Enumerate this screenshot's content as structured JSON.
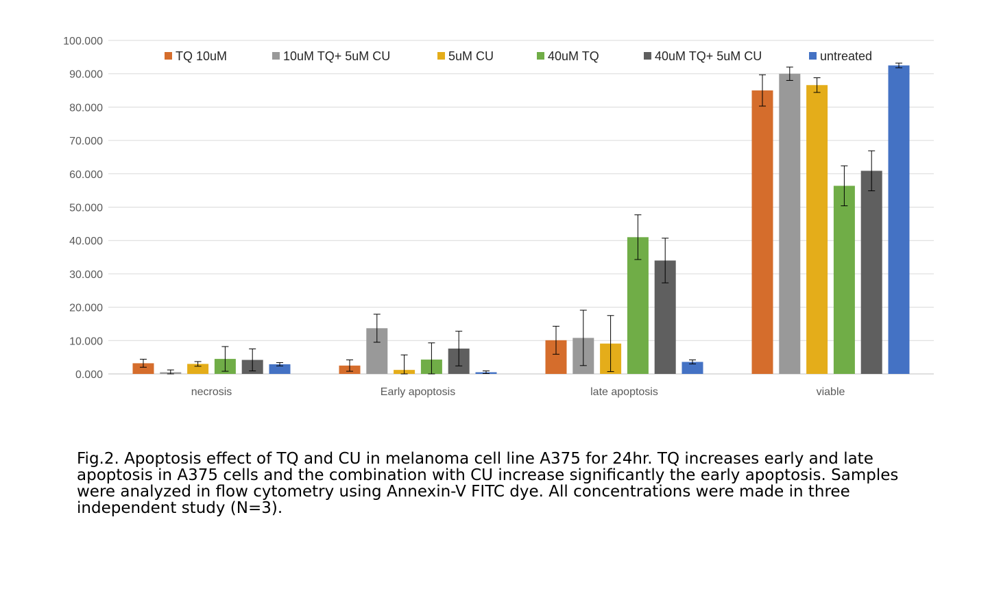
{
  "chart_data": {
    "type": "bar",
    "title": "",
    "xlabel": "",
    "ylabel": "",
    "ylim": [
      0,
      100
    ],
    "yticks": [
      "0.000",
      "10.000",
      "20.000",
      "30.000",
      "40.000",
      "50.000",
      "60.000",
      "70.000",
      "80.000",
      "90.000",
      "100.000"
    ],
    "grid": true,
    "legend_position": "top",
    "categories": [
      "necrosis",
      "Early apoptosis",
      "late apoptosis",
      "viable"
    ],
    "series": [
      {
        "name": "TQ 10uM",
        "color": "#d56d2c",
        "values": [
          3.2,
          2.5,
          10.1,
          85.0
        ],
        "errors": [
          1.2,
          1.7,
          4.2,
          4.7
        ]
      },
      {
        "name": "10uM TQ+ 5uM CU",
        "color": "#999999",
        "values": [
          0.5,
          13.7,
          10.8,
          90.0
        ],
        "errors": [
          0.7,
          4.2,
          8.3,
          2.0
        ]
      },
      {
        "name": "5uM CU",
        "color": "#e4ad1a",
        "values": [
          3.0,
          1.2,
          9.1,
          86.6
        ],
        "errors": [
          0.7,
          4.5,
          8.4,
          2.2
        ]
      },
      {
        "name": "40uM TQ",
        "color": "#70ad47",
        "values": [
          4.5,
          4.3,
          41.0,
          56.4
        ],
        "errors": [
          3.7,
          5.0,
          6.7,
          6.0
        ]
      },
      {
        "name": "40uM TQ+ 5uM CU",
        "color": "#5f5f5f",
        "values": [
          4.2,
          7.6,
          34.0,
          60.9
        ],
        "errors": [
          3.3,
          5.2,
          6.7,
          6.0
        ]
      },
      {
        "name": "untreated",
        "color": "#4472c4",
        "values": [
          2.9,
          0.5,
          3.6,
          92.5
        ],
        "errors": [
          0.5,
          0.4,
          0.6,
          0.7
        ]
      }
    ]
  },
  "caption": {
    "lines": [
      "Fig.2. Apoptosis effect of TQ and CU in melanoma cell line A375 for 24hr. TQ increases early and late",
      "apoptosis in A375 cells and the combination with CU increase significantly the early apoptosis. Samples",
      "were analyzed in flow cytometry using Annexin-V FITC dye. All concentrations were made in three",
      "independent study (N=3)."
    ]
  }
}
